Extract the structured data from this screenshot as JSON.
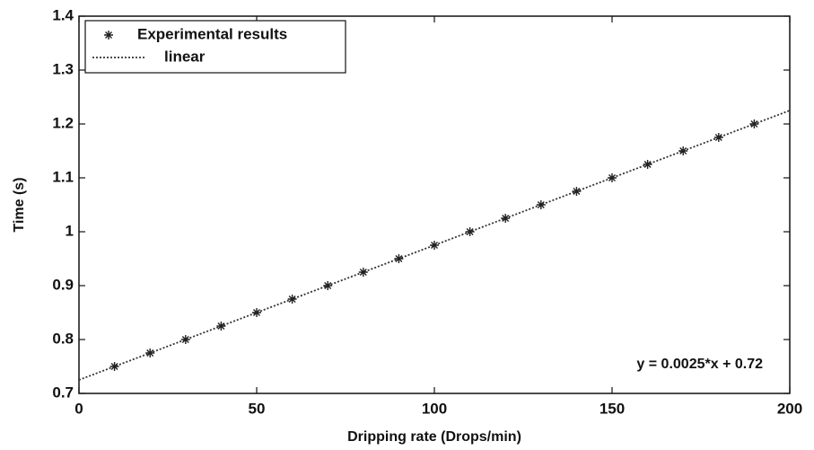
{
  "chart_data": {
    "type": "scatter",
    "xlabel": "Dripping rate (Drops/min)",
    "ylabel": "Time (s)",
    "annotation": "y = 0.0025*x + 0.72",
    "xlim": [
      0,
      200
    ],
    "xticks": [
      0,
      50,
      100,
      150,
      200
    ],
    "ylim": [
      0.7,
      1.4
    ],
    "yticks": [
      0.7,
      0.8,
      0.9,
      1,
      1.1,
      1.2,
      1.3,
      1.4
    ],
    "legend": "upper left",
    "series": [
      {
        "name": "Experimental results",
        "kind": "marker",
        "color": "#222222",
        "x": [
          10,
          20,
          30,
          40,
          50,
          60,
          70,
          80,
          90,
          100,
          110,
          120,
          130,
          140,
          150,
          160,
          170,
          180,
          190
        ],
        "values": [
          0.75,
          0.775,
          0.8,
          0.825,
          0.85,
          0.875,
          0.9,
          0.925,
          0.95,
          0.975,
          1.0,
          1.025,
          1.05,
          1.075,
          1.1,
          1.125,
          1.15,
          1.175,
          1.2
        ]
      },
      {
        "name": "linear",
        "kind": "line",
        "color": "#333333",
        "x": [
          0,
          200
        ],
        "values": [
          0.725,
          1.225
        ]
      }
    ]
  }
}
